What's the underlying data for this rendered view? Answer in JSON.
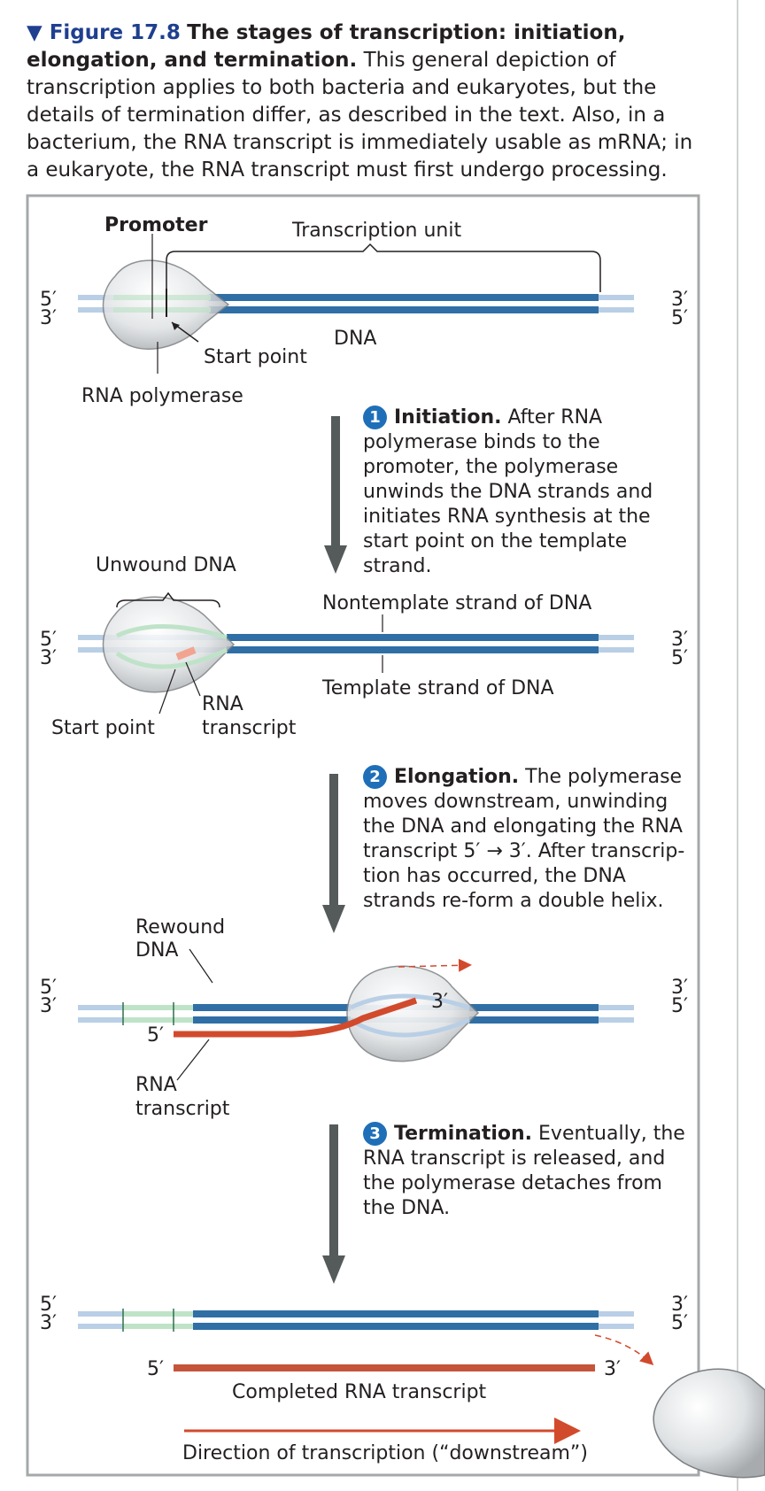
{
  "caption": {
    "figure_label": "▼ Figure 17.8",
    "title": "The stages of transcription: initiation, elongation, and termination.",
    "body": "This general depiction of transcription applies to both bacteria and eukaryotes, but the details of termination differ, as described in the text. Also, in a bacterium, the RNA transcript is immediately usable as mRNA; in a eukaryote, the RNA transcript must first undergo processing."
  },
  "labels": {
    "promoter": "Promoter",
    "transcription_unit": "Transcription unit",
    "five_prime": "5′",
    "three_prime": "3′",
    "dna": "DNA",
    "start_point": "Start point",
    "rna_polymerase": "RNA polymerase",
    "unwound_dna": "Unwound DNA",
    "nontemplate_strand": "Nontemplate strand of DNA",
    "template_strand": "Template strand of DNA",
    "rna": "RNA",
    "transcript": "transcript",
    "rewound": "Rewound",
    "completed_rna_transcript": "Completed RNA transcript",
    "direction": "Direction of transcription (“downstream”)"
  },
  "steps": [
    {
      "number": "1",
      "heading": "Initiation.",
      "text": "After RNA polymerase binds to the promoter, the polymerase unwinds the DNA strands and initiates RNA synthesis at the start point on the template strand."
    },
    {
      "number": "2",
      "heading": "Elongation.",
      "text": "The polymerase moves downstream, unwinding the DNA and elongating the RNA transcript 5′ → 3′. After transcrip- tion has occurred, the DNA strands re-form a double helix."
    },
    {
      "number": "3",
      "heading": "Termination.",
      "text": "Eventually, the RNA transcript is released, and the polymerase detaches from the DNA."
    }
  ],
  "colors": {
    "dna_dark": "#2f6fa6",
    "dna_light": "#b9cfe6",
    "promoter_green": "#bfe3c8",
    "rna_red": "#d24a2c",
    "arrow_gray": "#555a5a",
    "figure_blue": "#1f3f8f"
  }
}
